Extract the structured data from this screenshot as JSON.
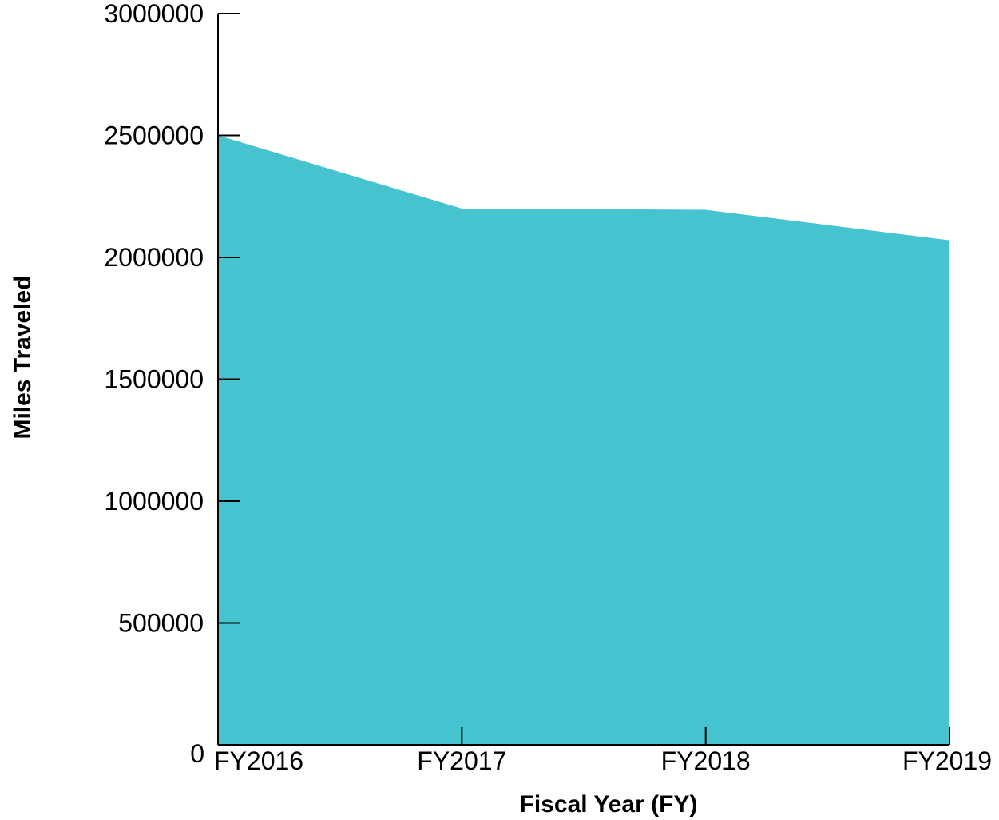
{
  "chart_data": {
    "type": "area",
    "categories": [
      "FY2016",
      "FY2017",
      "FY2018",
      "FY2019"
    ],
    "values": [
      2500000,
      2200000,
      2195000,
      2070000
    ],
    "xlabel": "Fiscal Year (FY)",
    "ylabel": "Miles Traveled",
    "ylim": [
      0,
      3000000
    ],
    "yticks": [
      0,
      500000,
      1000000,
      1500000,
      2000000,
      2500000,
      3000000
    ],
    "ytick_labels": [
      "0",
      "500000",
      "1000000",
      "1500000",
      "2000000",
      "2500000",
      "3000000"
    ],
    "grid": false,
    "legend": "none",
    "fill_color": "#45C3CF",
    "axis_color": "#000000"
  }
}
